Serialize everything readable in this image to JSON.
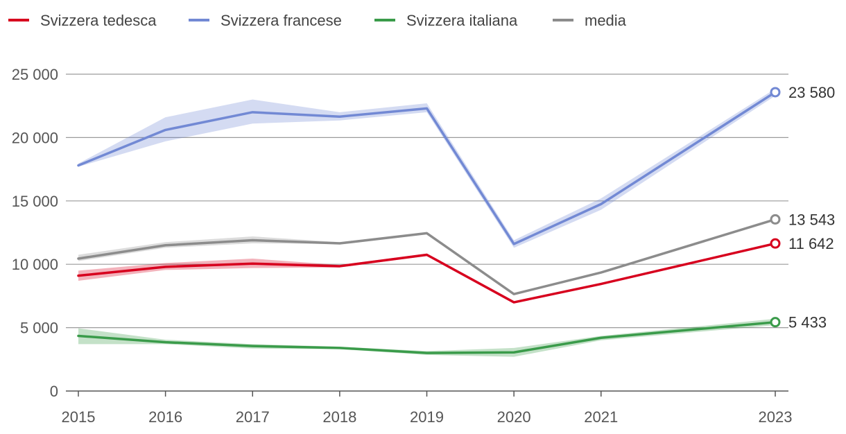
{
  "chart_data": {
    "type": "line",
    "title": "",
    "xlabel": "",
    "ylabel": "",
    "x": [
      2015,
      2016,
      2017,
      2018,
      2019,
      2020,
      2021,
      2023
    ],
    "x_tick_labels": [
      "2015",
      "2016",
      "2017",
      "2018",
      "2019",
      "2020",
      "2021",
      "2023"
    ],
    "y_ticks": [
      0,
      5000,
      10000,
      15000,
      20000,
      25000
    ],
    "y_tick_labels": [
      "0",
      "5 000",
      "10 000",
      "15 000",
      "20 000",
      "25 000"
    ],
    "ylim": [
      0,
      25000
    ],
    "grid": true,
    "legend_position": "top-left",
    "series": [
      {
        "name": "Svizzera tedesca",
        "color": "#d7001e",
        "values": [
          9100,
          9800,
          10050,
          9850,
          10750,
          7000,
          8450,
          11642
        ],
        "lower": [
          8700,
          9550,
          9700,
          9750,
          10650,
          6950,
          8400,
          11600
        ],
        "upper": [
          9500,
          10100,
          10450,
          9950,
          10850,
          7050,
          8500,
          11700
        ],
        "end_label": "11 642"
      },
      {
        "name": "Svizzera francese",
        "color": "#7289d4",
        "values": [
          17800,
          20600,
          22000,
          21650,
          22300,
          11600,
          14750,
          23580
        ],
        "lower": [
          17700,
          19700,
          21100,
          21350,
          22000,
          11300,
          14300,
          23300
        ],
        "upper": [
          17950,
          21600,
          23000,
          22000,
          22700,
          11900,
          15200,
          23850
        ],
        "end_label": "23 580"
      },
      {
        "name": "Svizzera italiana",
        "color": "#3a9b4a",
        "values": [
          4350,
          3850,
          3550,
          3400,
          3000,
          3050,
          4200,
          5433
        ],
        "lower": [
          3700,
          3700,
          3350,
          3300,
          2850,
          2700,
          4000,
          5200
        ],
        "upper": [
          4950,
          4050,
          3700,
          3500,
          3150,
          3400,
          4350,
          5700
        ],
        "end_label": "5 433"
      },
      {
        "name": "media",
        "color": "#8c8c8c",
        "values": [
          10450,
          11500,
          11900,
          11650,
          12450,
          7650,
          9350,
          13543
        ],
        "lower": [
          10250,
          11300,
          11650,
          11600,
          12400,
          7600,
          9300,
          13500
        ],
        "upper": [
          10750,
          11750,
          12200,
          11750,
          12500,
          7700,
          9400,
          13600
        ],
        "end_label": "13 543"
      }
    ]
  }
}
